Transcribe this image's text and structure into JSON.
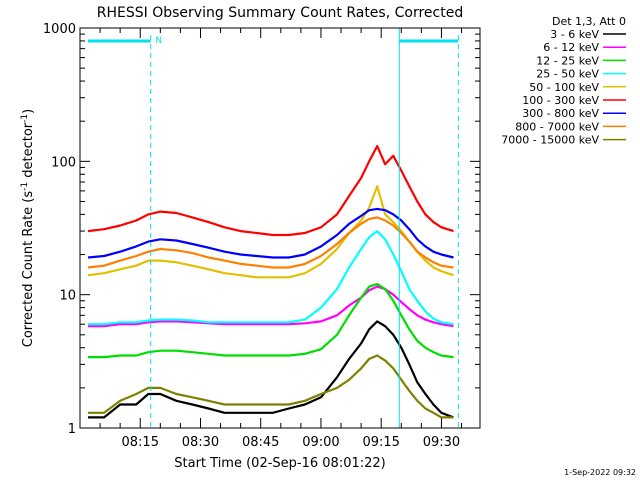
{
  "chart_data": {
    "type": "line",
    "title": "RHESSI Observing Summary Count Rates, Corrected",
    "xlabel": "Start Time (02-Sep-16 08:01:22)",
    "ylabel": "Corrected Count Rate (s",
    "ylabel_sup1": "-1",
    "ylabel_mid": " detector",
    "ylabel_sup2": "-1",
    "ylabel_end": ")",
    "y_scale": "log",
    "ylim": [
      1,
      1000
    ],
    "xlim": [
      "08:01:22",
      "09:41:00"
    ],
    "x_tick_labels": [
      "08:15",
      "08:30",
      "08:45",
      "09:00",
      "09:15",
      "09:30"
    ],
    "x_tick_minutes": [
      15,
      30,
      45,
      60,
      75,
      90
    ],
    "y_tick_labels": [
      "1",
      "10",
      "100",
      "1000"
    ],
    "y_tick_values": [
      1,
      10,
      100,
      1000
    ],
    "legend_header": "Det 1,3, Att 0",
    "legend_position": "right",
    "timestamp": "1-Sep-2022 09:32",
    "night_marker_label": "N",
    "time_axis_minutes": [
      2,
      6,
      10,
      14,
      17,
      20,
      24,
      28,
      32,
      36,
      40,
      44,
      48,
      52,
      56,
      60,
      64,
      67,
      70,
      72,
      74,
      76,
      78,
      80,
      82,
      84,
      86,
      88,
      90,
      93
    ],
    "series": [
      {
        "name": "3 - 6 keV",
        "color": "#000000",
        "values": [
          1.2,
          1.2,
          1.5,
          1.5,
          1.8,
          1.8,
          1.6,
          1.5,
          1.4,
          1.3,
          1.3,
          1.3,
          1.3,
          1.4,
          1.5,
          1.7,
          2.4,
          3.3,
          4.3,
          5.5,
          6.3,
          5.8,
          5.0,
          4.0,
          3.0,
          2.2,
          1.8,
          1.5,
          1.3,
          1.2
        ]
      },
      {
        "name": "6 - 12 keV",
        "color": "#ff00ff",
        "values": [
          5.8,
          5.8,
          6.0,
          6.0,
          6.2,
          6.3,
          6.3,
          6.2,
          6.1,
          6.0,
          6.0,
          6.0,
          6.0,
          6.0,
          6.1,
          6.3,
          7.0,
          8.3,
          9.5,
          10.8,
          11.5,
          11.0,
          10.0,
          8.8,
          7.8,
          7.0,
          6.5,
          6.2,
          6.0,
          5.8
        ]
      },
      {
        "name": "12 - 25 keV",
        "color": "#00dd00",
        "values": [
          3.4,
          3.4,
          3.5,
          3.5,
          3.7,
          3.8,
          3.8,
          3.7,
          3.6,
          3.5,
          3.5,
          3.5,
          3.5,
          3.5,
          3.6,
          3.9,
          5.0,
          7.0,
          9.5,
          11.5,
          12.0,
          11.0,
          9.0,
          7.0,
          5.5,
          4.5,
          4.0,
          3.7,
          3.5,
          3.4
        ]
      },
      {
        "name": "25 - 50 keV",
        "color": "#00ffff",
        "values": [
          6.0,
          6.0,
          6.2,
          6.2,
          6.4,
          6.5,
          6.5,
          6.4,
          6.2,
          6.2,
          6.2,
          6.2,
          6.2,
          6.2,
          6.5,
          8.0,
          11.0,
          16.0,
          22.0,
          27.0,
          30.0,
          26.0,
          20.0,
          15.0,
          11.0,
          9.0,
          7.5,
          6.6,
          6.2,
          6.0
        ]
      },
      {
        "name": "50 - 100 keV",
        "color": "#e0c000",
        "values": [
          14.0,
          14.5,
          15.5,
          16.5,
          18.0,
          18.0,
          17.5,
          16.5,
          15.5,
          14.5,
          14.0,
          13.5,
          13.5,
          13.5,
          14.5,
          17.0,
          22.0,
          29.0,
          36.0,
          45.0,
          65.0,
          40.0,
          35.0,
          30.0,
          25.0,
          21.0,
          18.0,
          16.0,
          15.0,
          14.0
        ]
      },
      {
        "name": "100 - 300 keV",
        "color": "#ff0000",
        "values": [
          30.0,
          31.0,
          33.0,
          36.0,
          40.0,
          42.0,
          41.0,
          38.0,
          35.0,
          32.0,
          30.0,
          29.0,
          28.0,
          28.0,
          29.0,
          32.0,
          40.0,
          55.0,
          75.0,
          100.0,
          130.0,
          95.0,
          110.0,
          85.0,
          65.0,
          50.0,
          40.0,
          35.0,
          32.0,
          30.0
        ]
      },
      {
        "name": "300 - 800 keV",
        "color": "#0000ff",
        "values": [
          19.0,
          19.5,
          21.0,
          23.0,
          25.0,
          26.0,
          25.5,
          24.0,
          22.5,
          21.0,
          20.0,
          19.5,
          19.0,
          19.0,
          20.0,
          23.0,
          28.0,
          34.0,
          39.0,
          43.0,
          44.0,
          43.0,
          40.0,
          36.0,
          31.0,
          26.0,
          23.0,
          21.0,
          20.0,
          19.0
        ]
      },
      {
        "name": "800 - 7000 keV",
        "color": "#ff8000",
        "values": [
          16.0,
          16.5,
          18.0,
          19.5,
          21.0,
          22.0,
          21.5,
          20.5,
          19.0,
          18.0,
          17.0,
          16.5,
          16.0,
          16.0,
          17.0,
          19.5,
          24.0,
          29.0,
          34.0,
          37.0,
          38.0,
          36.0,
          33.0,
          29.0,
          25.0,
          21.0,
          19.0,
          17.5,
          16.5,
          16.0
        ]
      },
      {
        "name": "7000 - 15000 keV",
        "color": "#808000",
        "values": [
          1.3,
          1.3,
          1.6,
          1.8,
          2.0,
          2.0,
          1.8,
          1.7,
          1.6,
          1.5,
          1.5,
          1.5,
          1.5,
          1.5,
          1.6,
          1.8,
          2.0,
          2.3,
          2.8,
          3.3,
          3.5,
          3.2,
          2.8,
          2.3,
          1.9,
          1.6,
          1.4,
          1.3,
          1.2,
          1.2
        ]
      }
    ]
  }
}
